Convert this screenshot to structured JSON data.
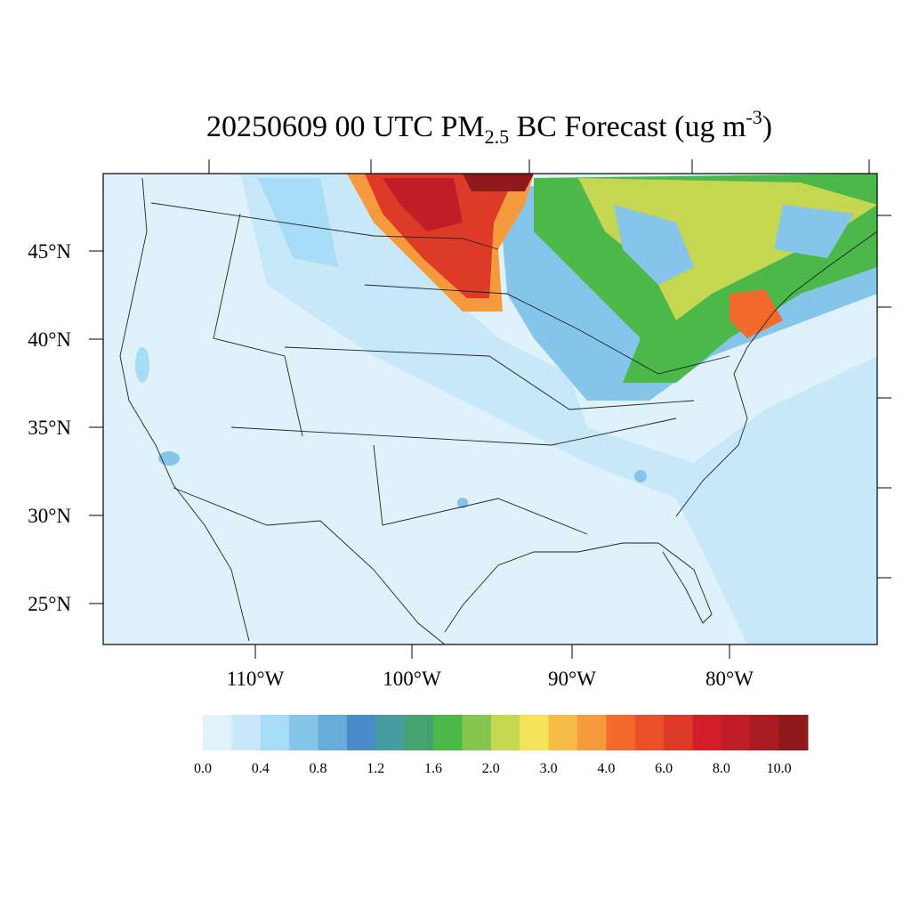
{
  "title": {
    "main": "20250609 00 UTC PM",
    "sub": "2.5",
    "rest": " BC Forecast (ug m",
    "sup": "-3",
    "close": ")"
  },
  "lat_labels": [
    "45°N",
    "40°N",
    "35°N",
    "30°N",
    "25°N"
  ],
  "lon_labels": [
    "110°W",
    "100°W",
    "90°W",
    "80°W"
  ],
  "colorbar": {
    "labels": [
      "0.0",
      "0.4",
      "0.8",
      "1.2",
      "1.6",
      "2.0",
      "3.0",
      "4.0",
      "6.0",
      "8.0",
      "10.0"
    ],
    "colors": [
      "#e0f3fb",
      "#c6e8f8",
      "#a6dcf6",
      "#86c5ea",
      "#68acd9",
      "#4a8ccb",
      "#479e9e",
      "#46a371",
      "#4cb84a",
      "#86c54e",
      "#c5d651",
      "#f5e35a",
      "#f6bb47",
      "#f59a3d",
      "#f26b2c",
      "#e9502a",
      "#dd3a28",
      "#d31f2a",
      "#bf1e28",
      "#a81c22",
      "#8f1a1c"
    ]
  }
}
